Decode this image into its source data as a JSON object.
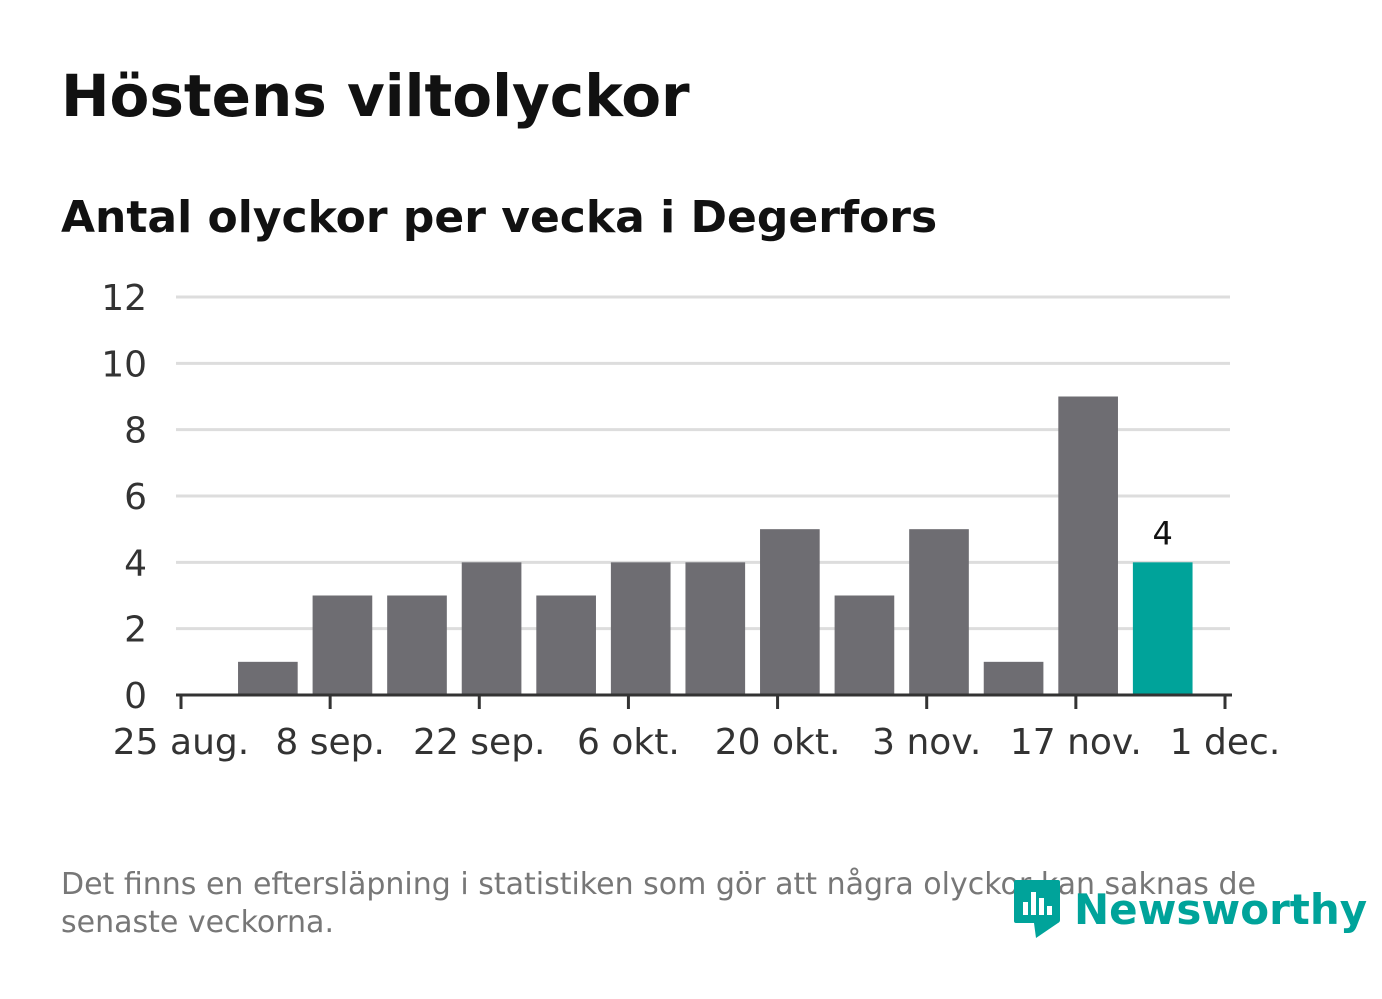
{
  "title": "Höstens viltolyckor",
  "subtitle": "Antal olyckor per vecka i Degerfors",
  "footnote": "Det finns en eftersläpning i statistiken som gör att några olyckor kan saknas de senaste veckorna.",
  "logo": {
    "text": "Newsworthy",
    "icon": "newsworthy-logo-icon"
  },
  "colors": {
    "bar": "#6e6d72",
    "highlight": "#00a39a",
    "grid": "#dddddd",
    "axis": "#333333"
  },
  "chart_data": {
    "type": "bar",
    "title": "Höstens viltolyckor",
    "subtitle": "Antal olyckor per vecka i Degerfors",
    "x_ticks": [
      "25 aug.",
      "8 sep.",
      "22 sep.",
      "6 okt.",
      "20 okt.",
      "3 nov.",
      "17 nov.",
      "1 dec."
    ],
    "y_ticks": [
      0,
      2,
      4,
      6,
      8,
      10,
      12
    ],
    "ylim": [
      0,
      12
    ],
    "x_range": [
      "2025-08-25",
      "2025-12-01"
    ],
    "grid": true,
    "series": [
      {
        "weeks": [
          "2025-09-01",
          "2025-09-08",
          "2025-09-15",
          "2025-09-22",
          "2025-09-29",
          "2025-10-06",
          "2025-10-13",
          "2025-10-20",
          "2025-10-27",
          "2025-11-03",
          "2025-11-10",
          "2025-11-17",
          "2025-11-24"
        ],
        "values": [
          1,
          3,
          3,
          4,
          3,
          4,
          4,
          5,
          3,
          5,
          1,
          9,
          4
        ],
        "highlight_last": true
      }
    ],
    "annotations": [
      {
        "week": "2025-11-24",
        "label": "4"
      }
    ]
  }
}
